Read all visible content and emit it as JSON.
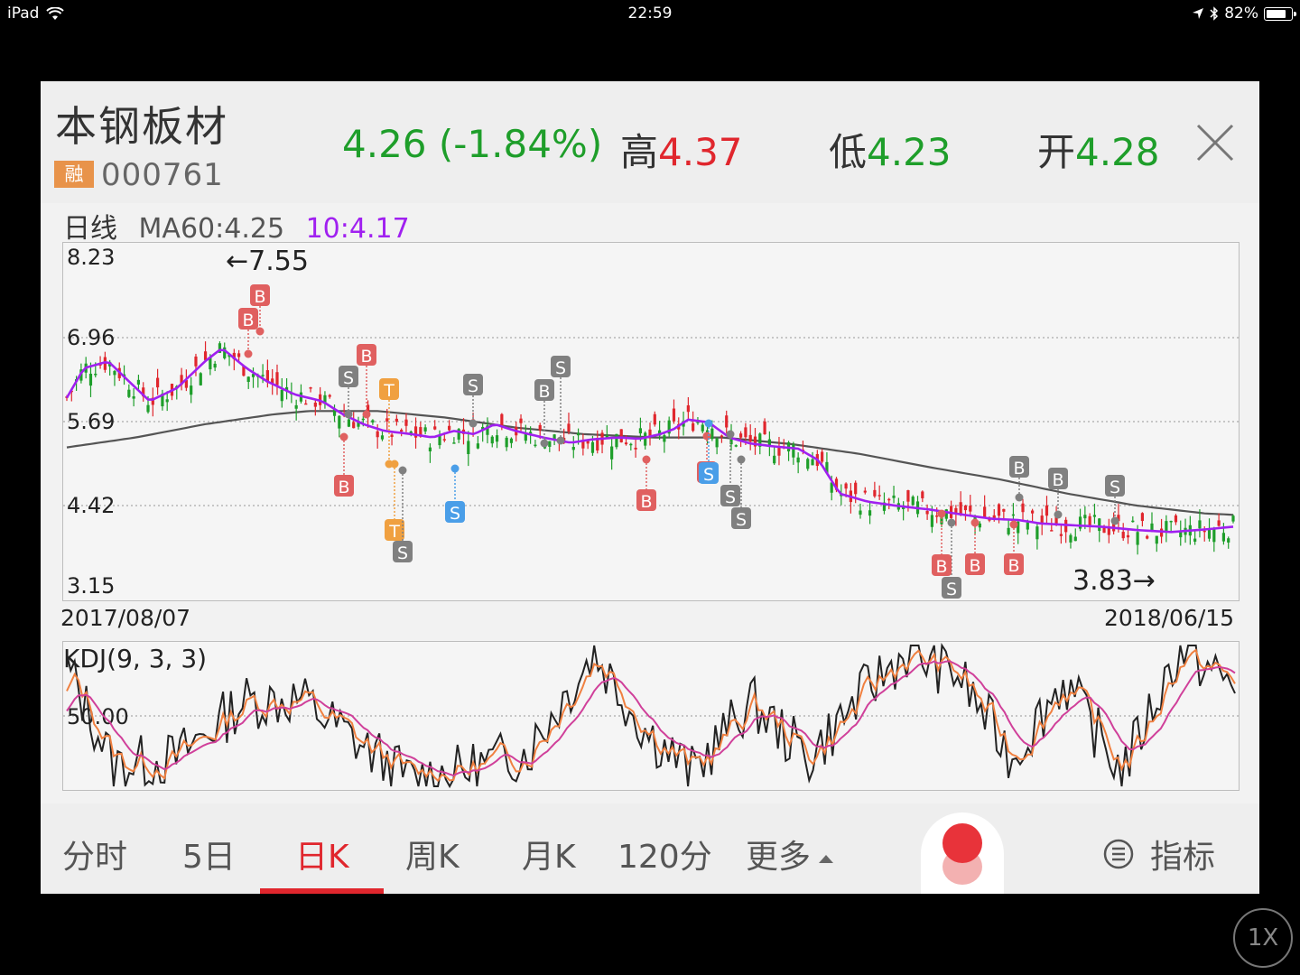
{
  "status_bar": {
    "device": "iPad",
    "time": "22:59",
    "battery": "82%",
    "battery_level": 0.82
  },
  "stock": {
    "name": "本钢板材",
    "badge": "融",
    "code": "000761",
    "price_change": "4.26 (-1.84%)",
    "high_label": "高",
    "high_value": "4.37",
    "low_label": "低",
    "low_value": "4.23",
    "open_label": "开",
    "open_value": "4.28"
  },
  "chart_header": {
    "period_label": "日线",
    "ma60": "MA60:4.25",
    "ma10": "10:4.17"
  },
  "colors": {
    "up": "#e0262d",
    "down": "#1e9e2a",
    "ma10": "#a020f0",
    "ma60": "#555555",
    "k": "#222222",
    "d": "#f08040",
    "j": "#d0409a",
    "buy": "#e06060",
    "sell_gray": "#808080",
    "sell_blue": "#4a9ee8",
    "t": "#f0a040"
  },
  "chart_data": [
    {
      "type": "candlestick",
      "title": "日线",
      "x_start": "2017/08/07",
      "x_end": "2018/06/15",
      "y_ticks": [
        "8.23",
        "6.96",
        "5.69",
        "4.42",
        "3.15"
      ],
      "ylim": [
        3.15,
        8.23
      ],
      "annotations": [
        "←7.55",
        "3.83→"
      ],
      "series": [
        {
          "name": "MA60",
          "value": 4.25
        },
        {
          "name": "10",
          "value": 4.17
        }
      ],
      "signals": [
        "B",
        "B",
        "S",
        "B",
        "T",
        "T",
        "B",
        "S",
        "S",
        "B",
        "S",
        "B",
        "S",
        "B",
        "S",
        "B",
        "B",
        "S",
        "B",
        "S",
        "B",
        "B",
        "S",
        "S"
      ]
    },
    {
      "type": "line",
      "title": "KDJ(9, 3, 3)",
      "y_ticks": [
        "50.00"
      ],
      "ylim": [
        0,
        100
      ],
      "series": [
        {
          "name": "K"
        },
        {
          "name": "D"
        },
        {
          "name": "J"
        }
      ]
    }
  ],
  "tabs": [
    "分时",
    "5日",
    "日K",
    "周K",
    "月K",
    "120分",
    "更多"
  ],
  "active_tab": "日K",
  "indicator_label": "指标",
  "zoom_label": "1X"
}
